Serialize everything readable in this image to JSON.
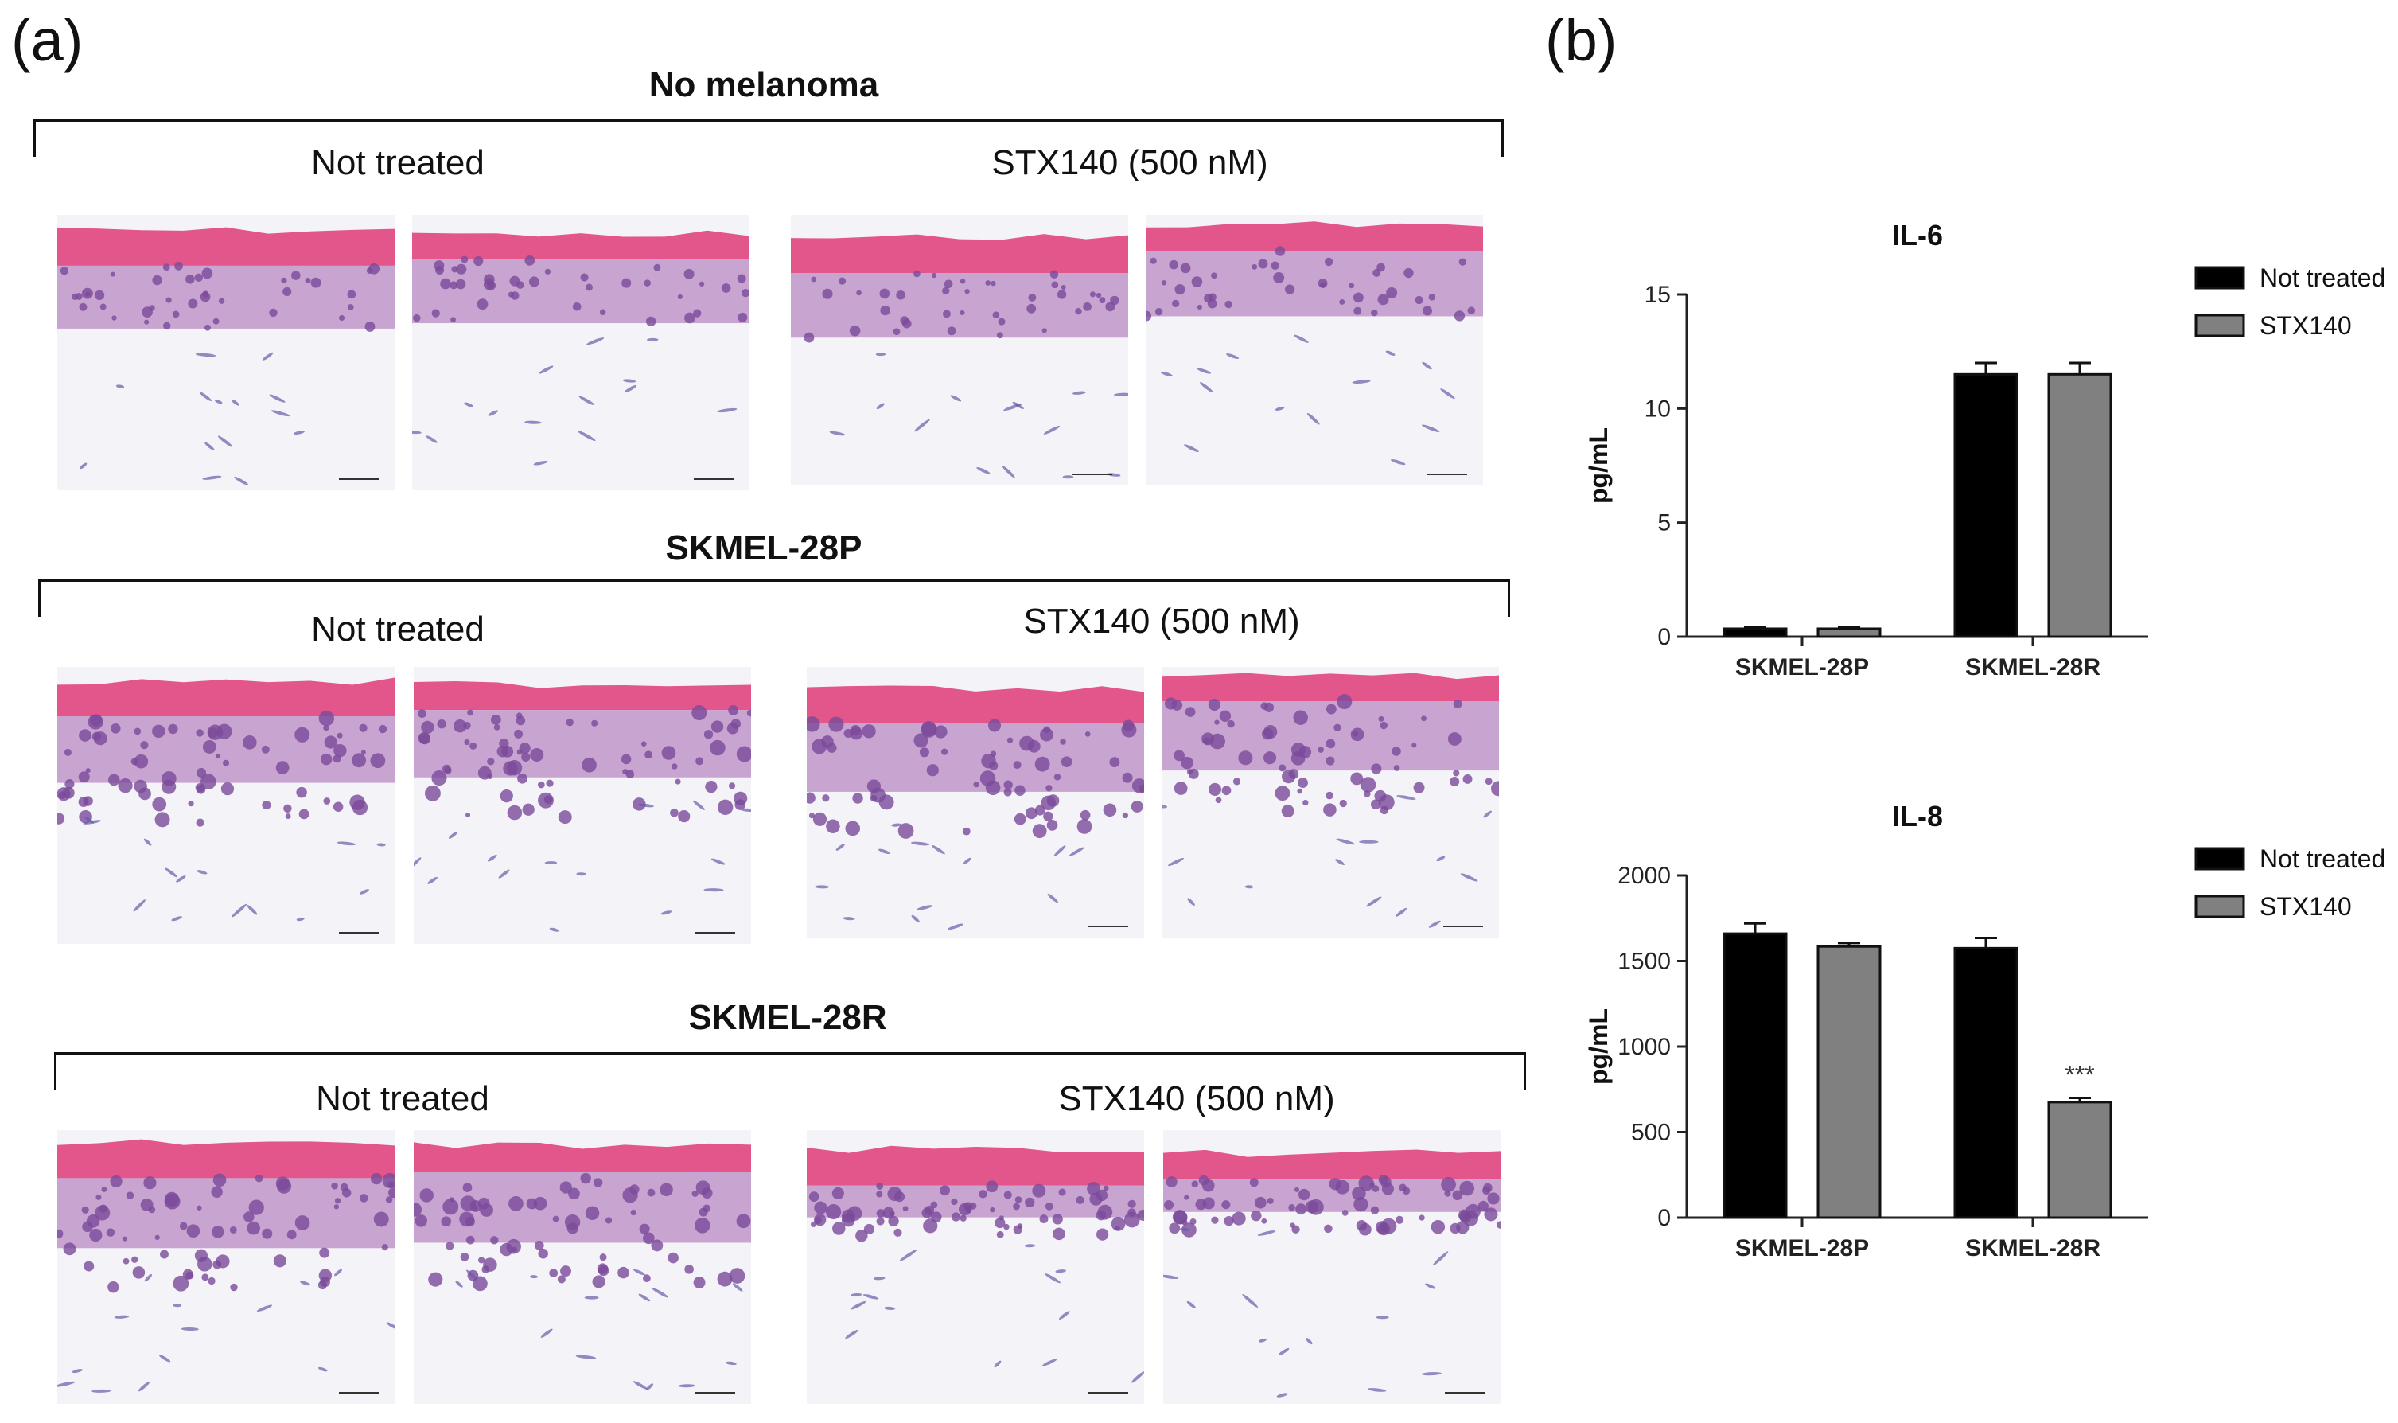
{
  "panel_a": {
    "letter": "(a)",
    "groups": [
      {
        "title": "No melanoma",
        "conditions": [
          "Not treated",
          "STX140 (500 nM)"
        ]
      },
      {
        "title": "SKMEL-28P",
        "conditions": [
          "Not treated",
          "STX140 (500 nM)"
        ]
      },
      {
        "title": "SKMEL-28R",
        "conditions": [
          "Not treated",
          "STX140 (500 nM)"
        ]
      }
    ]
  },
  "panel_b": {
    "letter": "(b)"
  },
  "colors": {
    "not_treated": "#000000",
    "stx140": "#808080",
    "stain_pink": "#e0457e",
    "stain_purple": "#7a4a9a",
    "dermis": "#f4f3f8"
  },
  "chart_data": [
    {
      "type": "bar",
      "title": "IL-6",
      "ylabel": "pg/mL",
      "xlabel": "",
      "categories": [
        "SKMEL-28P",
        "SKMEL-28R"
      ],
      "ylim": [
        0,
        15
      ],
      "yticks": [
        0,
        5,
        10,
        15
      ],
      "series": [
        {
          "name": "Not treated",
          "color": "#000000",
          "values": [
            0.35,
            11.5
          ],
          "errors": [
            0.08,
            0.5
          ]
        },
        {
          "name": "STX140",
          "color": "#808080",
          "values": [
            0.35,
            11.5
          ],
          "errors": [
            0.05,
            0.5
          ]
        }
      ],
      "legend_position": "top-right",
      "annotations": []
    },
    {
      "type": "bar",
      "title": "IL-8",
      "ylabel": "pg/mL",
      "xlabel": "",
      "categories": [
        "SKMEL-28P",
        "SKMEL-28R"
      ],
      "ylim": [
        0,
        2000
      ],
      "yticks": [
        0,
        500,
        1000,
        1500,
        2000
      ],
      "series": [
        {
          "name": "Not treated",
          "color": "#000000",
          "values": [
            1660,
            1575
          ],
          "errors": [
            60,
            60
          ]
        },
        {
          "name": "STX140",
          "color": "#808080",
          "values": [
            1585,
            675
          ],
          "errors": [
            20,
            25
          ]
        }
      ],
      "legend_position": "top-right",
      "annotations": [
        {
          "category": "SKMEL-28R",
          "series": "STX140",
          "text": "***"
        }
      ]
    }
  ]
}
